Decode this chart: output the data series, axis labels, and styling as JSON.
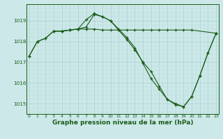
{
  "title": "Graphe pression niveau de la mer (hPa)",
  "title_fontsize": 6.5,
  "ylim": [
    1014.5,
    1019.8
  ],
  "xlim": [
    -0.3,
    23.3
  ],
  "bg_color": "#cce8e8",
  "grid_major_color": "#aad0d0",
  "grid_minor_color": "#bbdcdc",
  "line_color": "#1a5c1a",
  "line1_x": [
    0,
    1,
    2,
    3,
    4,
    5,
    6,
    7,
    8,
    9,
    10,
    11,
    12,
    13,
    14,
    15,
    16,
    17,
    18,
    19,
    20,
    21,
    22,
    23
  ],
  "line1_y": [
    1017.3,
    1018.0,
    1018.15,
    1018.5,
    1018.5,
    1018.55,
    1018.6,
    1019.05,
    1019.35,
    1019.2,
    1019.0,
    1018.55,
    1018.1,
    1017.6,
    1017.0,
    1016.55,
    1015.85,
    1015.2,
    1014.95,
    1014.85,
    1015.35,
    1016.35,
    1017.45,
    1018.4
  ],
  "line2_x": [
    0,
    1,
    2,
    3,
    4,
    5,
    6,
    7,
    8,
    9,
    10,
    11,
    12,
    13,
    14,
    15,
    16,
    17,
    18,
    19,
    20,
    21,
    22,
    23
  ],
  "line2_y": [
    1017.3,
    1018.0,
    1018.15,
    1018.5,
    1018.5,
    1018.55,
    1018.6,
    1018.7,
    1019.3,
    1019.2,
    1019.0,
    1018.6,
    1018.2,
    1017.7,
    1016.95,
    1016.2,
    1015.7,
    1015.2,
    1015.0,
    1014.85,
    1015.35,
    1016.35,
    1017.45,
    1018.4
  ],
  "line3_x": [
    3,
    4,
    5,
    6,
    7,
    8,
    9,
    10,
    11,
    12,
    13,
    14,
    15,
    16,
    17,
    18,
    19,
    20,
    23
  ],
  "line3_y": [
    1018.5,
    1018.5,
    1018.55,
    1018.6,
    1018.6,
    1018.6,
    1018.55,
    1018.55,
    1018.55,
    1018.55,
    1018.55,
    1018.55,
    1018.55,
    1018.55,
    1018.55,
    1018.55,
    1018.55,
    1018.55,
    1018.4
  ],
  "yticks": [
    1015,
    1016,
    1017,
    1018,
    1019
  ],
  "xticks": [
    0,
    1,
    2,
    3,
    4,
    5,
    6,
    7,
    8,
    9,
    10,
    11,
    12,
    13,
    14,
    15,
    16,
    17,
    18,
    19,
    20,
    21,
    22,
    23
  ]
}
